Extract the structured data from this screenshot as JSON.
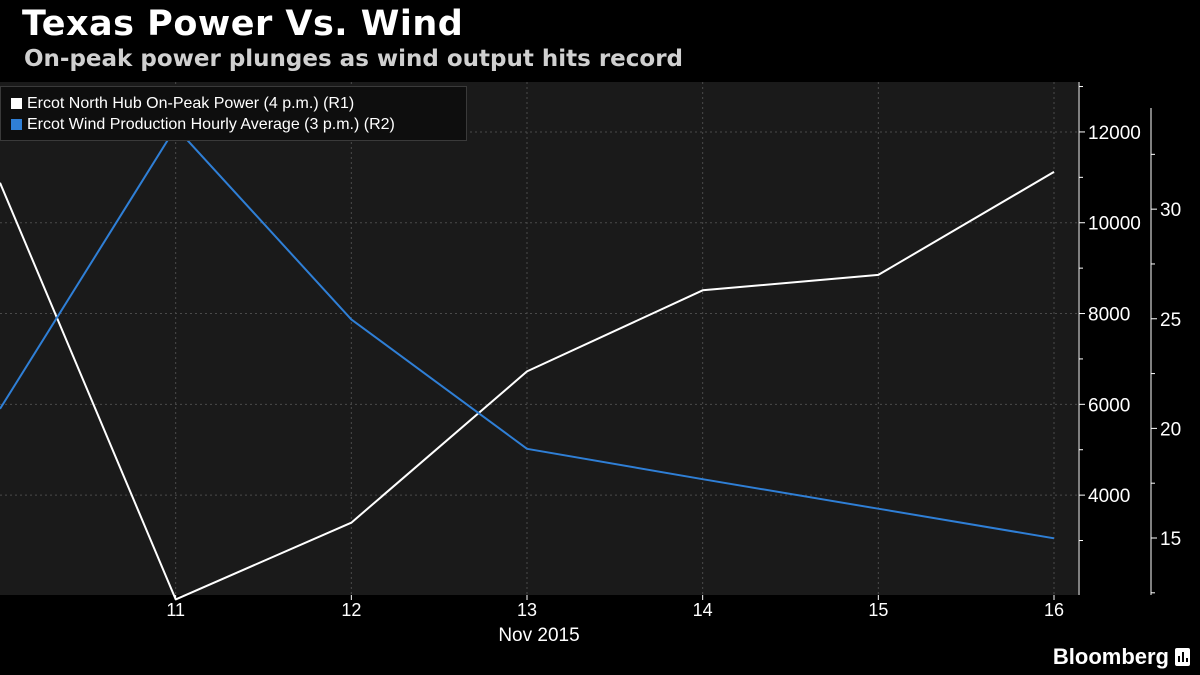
{
  "header": {
    "title": "Texas Power Vs. Wind",
    "subtitle": "On-peak power plunges as wind output hits record"
  },
  "footer": {
    "brand": "Bloomberg"
  },
  "colors": {
    "background": "#000000",
    "plot_background": "#1a1a1a",
    "grid": "#4a4a4a",
    "power_line": "#ffffff",
    "wind_line": "#2f7fd6",
    "text": "#ffffff"
  },
  "chart_data": {
    "type": "line",
    "x": [
      10,
      11,
      12,
      13,
      14,
      15,
      16
    ],
    "x_tick_labels": [
      "11",
      "12",
      "13",
      "14",
      "15",
      "16"
    ],
    "xlabel": "Nov 2015",
    "series": [
      {
        "name": "Ercot North Hub On-Peak Power (4 p.m.) (R1)",
        "axis": "right_inner",
        "color": "#ffffff",
        "values": [
          31.2,
          12.2,
          15.7,
          22.6,
          26.3,
          27.0,
          31.7
        ]
      },
      {
        "name": "Ercot Wind Production Hourly Average (3 p.m.) (R2)",
        "axis": "right_outer",
        "color": "#2f7fd6",
        "values": [
          5900,
          12100,
          7870,
          5020,
          4350,
          3700,
          3050
        ]
      }
    ],
    "axes": {
      "right_inner": {
        "ticks": [
          4000,
          6000,
          8000,
          10000,
          12000
        ],
        "range": [
          1800,
          13100
        ]
      },
      "right_outer": {
        "ticks": [
          15,
          20,
          25,
          30
        ],
        "range": [
          12.4,
          35.8
        ]
      }
    },
    "grid": true,
    "legend_position": "top-left"
  }
}
